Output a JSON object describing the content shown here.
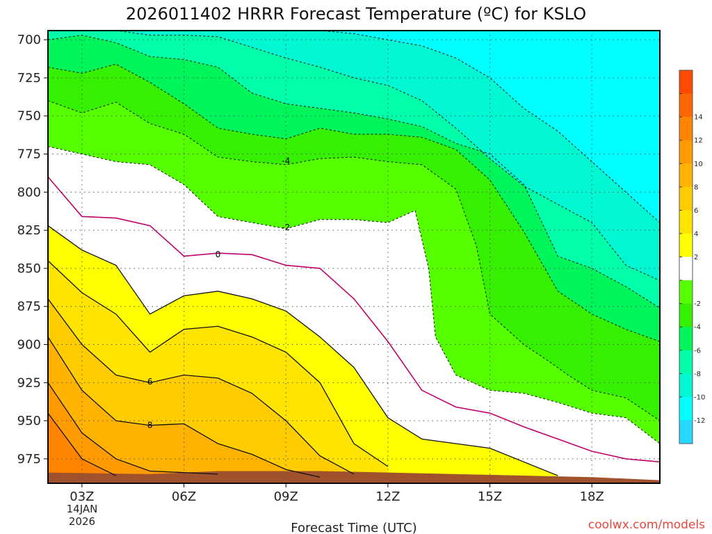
{
  "chart_data": {
    "type": "contour",
    "title": "2026011402 HRRR Forecast Temperature (ºC) for KSLO",
    "xlabel": "Forecast Time (UTC)",
    "ylabel": "",
    "x_range_hours": [
      2,
      20
    ],
    "y_range_hpa": [
      694,
      991
    ],
    "y_inverted": true,
    "x_ticks": [
      {
        "value": 3,
        "label": "03Z"
      },
      {
        "value": 6,
        "label": "06Z"
      },
      {
        "value": 9,
        "label": "09Z"
      },
      {
        "value": 12,
        "label": "12Z"
      },
      {
        "value": 15,
        "label": "15Z"
      },
      {
        "value": 18,
        "label": "18Z"
      }
    ],
    "x_sublabels": [
      "14JAN",
      "2026"
    ],
    "y_ticks": [
      {
        "value": 700,
        "label": "700"
      },
      {
        "value": 725,
        "label": "725"
      },
      {
        "value": 750,
        "label": "750"
      },
      {
        "value": 775,
        "label": "775"
      },
      {
        "value": 800,
        "label": "800"
      },
      {
        "value": 825,
        "label": "825"
      },
      {
        "value": 850,
        "label": "850"
      },
      {
        "value": 875,
        "label": "875"
      },
      {
        "value": 900,
        "label": "900"
      },
      {
        "value": 925,
        "label": "925"
      },
      {
        "value": 950,
        "label": "950"
      },
      {
        "value": 975,
        "label": "975"
      }
    ],
    "grid": true,
    "contour_interval_c": 2,
    "contour_labels": [
      "-4",
      "-2",
      "0",
      "6",
      "8"
    ],
    "levels": [
      {
        "value": -12,
        "color": "#00ffff",
        "label": "-12"
      },
      {
        "value": -10,
        "color": "#00f7d2",
        "label": "-10"
      },
      {
        "value": -8,
        "color": "#00ffa8",
        "label": "-8"
      },
      {
        "value": -6,
        "color": "#00f55a",
        "label": "-6"
      },
      {
        "value": -4,
        "color": "#35f000",
        "label": "-4"
      },
      {
        "value": -2,
        "color": "#55ff00",
        "label": "-2"
      },
      {
        "value": 0,
        "color": "#ffffff",
        "label": ""
      },
      {
        "value": 2,
        "color": "#ffff00",
        "label": "2"
      },
      {
        "value": 4,
        "color": "#ffe400",
        "label": "4"
      },
      {
        "value": 6,
        "color": "#ffcc00",
        "label": "6"
      },
      {
        "value": 8,
        "color": "#ffb300",
        "label": "8"
      },
      {
        "value": 10,
        "color": "#ff9b00",
        "label": "10"
      },
      {
        "value": 12,
        "color": "#ff8500",
        "label": "12"
      },
      {
        "value": 14,
        "color": "#ff6600",
        "label": "14"
      },
      {
        "value": 16,
        "color": "#ff4a00",
        "label": ""
      }
    ],
    "colorbar_extend_min_color": "#26d7ff",
    "ground_color": "#a0522d",
    "isotherms": [
      {
        "value": 0,
        "hours": [
          2,
          3,
          4,
          5,
          6,
          7,
          8,
          9,
          10,
          11,
          12,
          13,
          14,
          15,
          16,
          17,
          18,
          19,
          20
        ],
        "pressure": [
          790,
          816,
          817,
          822,
          842,
          840,
          841,
          848,
          850,
          870,
          898,
          930,
          941,
          945,
          954,
          962,
          970,
          975,
          977
        ]
      },
      {
        "value": 2,
        "hours": [
          2,
          3,
          4,
          5,
          6,
          7,
          8,
          9,
          10,
          11,
          12,
          13,
          14,
          15,
          16,
          17
        ],
        "pressure": [
          822,
          838,
          848,
          880,
          868,
          865,
          870,
          878,
          895,
          915,
          948,
          962,
          965,
          968,
          977,
          986
        ]
      },
      {
        "value": 4,
        "hours": [
          2,
          3,
          4,
          5,
          6,
          7,
          8,
          9,
          10,
          11,
          12
        ],
        "pressure": [
          845,
          866,
          880,
          905,
          890,
          888,
          895,
          905,
          925,
          965,
          980
        ]
      },
      {
        "value": 6,
        "hours": [
          2,
          3,
          4,
          5,
          6,
          7,
          8,
          9,
          10,
          11
        ],
        "pressure": [
          870,
          900,
          920,
          925,
          920,
          922,
          932,
          950,
          973,
          985
        ]
      },
      {
        "value": 8,
        "hours": [
          2,
          3,
          4,
          5,
          6,
          7,
          8,
          9,
          10
        ],
        "pressure": [
          895,
          930,
          950,
          953,
          952,
          965,
          972,
          982,
          987
        ]
      },
      {
        "value": 10,
        "hours": [
          2,
          3,
          4,
          5,
          6,
          7
        ],
        "pressure": [
          925,
          958,
          975,
          983,
          984,
          985
        ]
      },
      {
        "value": 12,
        "hours": [
          2,
          3,
          4
        ],
        "pressure": [
          945,
          975,
          986
        ]
      },
      {
        "value": -2,
        "hours": [
          2,
          3,
          4,
          5,
          6,
          7,
          8,
          9,
          10,
          11,
          12,
          12.8,
          13.2,
          13.4,
          14,
          15,
          16,
          17,
          18,
          19,
          20
        ],
        "pressure": [
          770,
          775,
          780,
          782,
          795,
          816,
          820,
          824,
          818,
          818,
          820,
          812,
          850,
          895,
          920,
          930,
          932,
          938,
          945,
          948,
          965
        ]
      },
      {
        "value": -4,
        "hours": [
          2,
          3,
          4,
          5,
          6,
          7,
          8,
          9,
          10,
          11,
          12,
          13,
          14,
          14.6,
          15,
          16,
          16.8,
          17.3,
          18,
          19,
          20
        ],
        "pressure": [
          740,
          748,
          741,
          755,
          762,
          777,
          780,
          782,
          778,
          777,
          780,
          782,
          798,
          835,
          880,
          900,
          912,
          920,
          930,
          935,
          950
        ]
      },
      {
        "value": -6,
        "hours": [
          2,
          3,
          4,
          5,
          6,
          7,
          8,
          9,
          10,
          11,
          12,
          13,
          14,
          15,
          16,
          17,
          18,
          19,
          20
        ],
        "pressure": [
          718,
          722,
          716,
          728,
          742,
          758,
          762,
          765,
          758,
          762,
          762,
          764,
          772,
          792,
          826,
          865,
          880,
          890,
          898
        ]
      },
      {
        "value": -8,
        "hours": [
          2,
          3,
          4,
          5,
          6,
          7,
          8,
          9,
          10,
          11,
          12,
          13,
          14,
          15,
          16,
          17,
          18,
          19,
          20
        ],
        "pressure": [
          700,
          697,
          702,
          711,
          713,
          718,
          735,
          742,
          745,
          748,
          752,
          757,
          768,
          775,
          795,
          842,
          850,
          862,
          876
        ]
      },
      {
        "value": -10,
        "hours": [
          4,
          5,
          6,
          7,
          8,
          9,
          10,
          11,
          12,
          13,
          14,
          15,
          16,
          17,
          18,
          19,
          20
        ],
        "pressure": [
          694,
          697,
          697,
          698,
          705,
          712,
          718,
          725,
          730,
          740,
          758,
          778,
          796,
          808,
          820,
          848,
          858
        ]
      },
      {
        "value": -12,
        "hours": [
          10,
          11,
          12,
          13,
          14,
          15,
          16,
          17,
          18,
          19,
          20
        ],
        "pressure": [
          694,
          696,
          700,
          704,
          712,
          725,
          745,
          760,
          780,
          800,
          820
        ]
      }
    ],
    "ground_pressure": {
      "hours": [
        2,
        5,
        7,
        8,
        10,
        12,
        14,
        16,
        18,
        20
      ],
      "pressure": [
        984,
        985,
        983,
        983,
        983,
        984,
        985,
        986,
        987,
        989
      ]
    }
  },
  "credit": "coolwx.com/models"
}
